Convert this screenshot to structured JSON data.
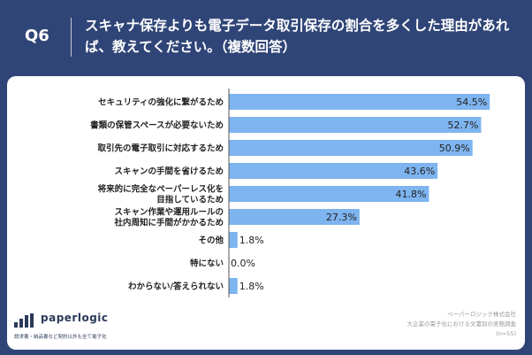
{
  "header": {
    "question_no": "Q6",
    "title": "スキャナ保存よりも電子データ取引保存の割合を多くした理由があれば、教えてください。（複数回答）"
  },
  "chart_data": {
    "type": "bar",
    "orientation": "horizontal",
    "categories": [
      [
        "セキュリティの強化に繋がるため"
      ],
      [
        "書類の保管スペースが必要ないため"
      ],
      [
        "取引先の電子取引に対応するため"
      ],
      [
        "スキャンの手間を省けるため"
      ],
      [
        "将来的に完全なペーパーレス化を",
        "目指しているため"
      ],
      [
        "スキャン作業や運用ルールの",
        "社内周知に手間がかかるため"
      ],
      [
        "その他"
      ],
      [
        "特にない"
      ],
      [
        "わからない/答えられない"
      ]
    ],
    "values": [
      54.5,
      52.7,
      50.9,
      43.6,
      41.8,
      27.3,
      1.8,
      0.0,
      1.8
    ],
    "value_labels": [
      "54.5%",
      "52.7%",
      "50.9%",
      "43.6%",
      "41.8%",
      "27.3%",
      "1.8%",
      "0.0%",
      "1.8%"
    ],
    "xlim": [
      0,
      60
    ],
    "bar_color": "#7eb4ef",
    "axis_color": "#555555"
  },
  "footer": {
    "brand": "paperlogic",
    "tagline": "請求書・納品書など契約以外も全て電子化",
    "source_lines": [
      "ペーパーロジック株式会社",
      "大企業の電子化における文書別の実態調査",
      "(n=55)"
    ]
  },
  "colors": {
    "header_bg": "#304577",
    "panel_bg": "#ffffff"
  }
}
